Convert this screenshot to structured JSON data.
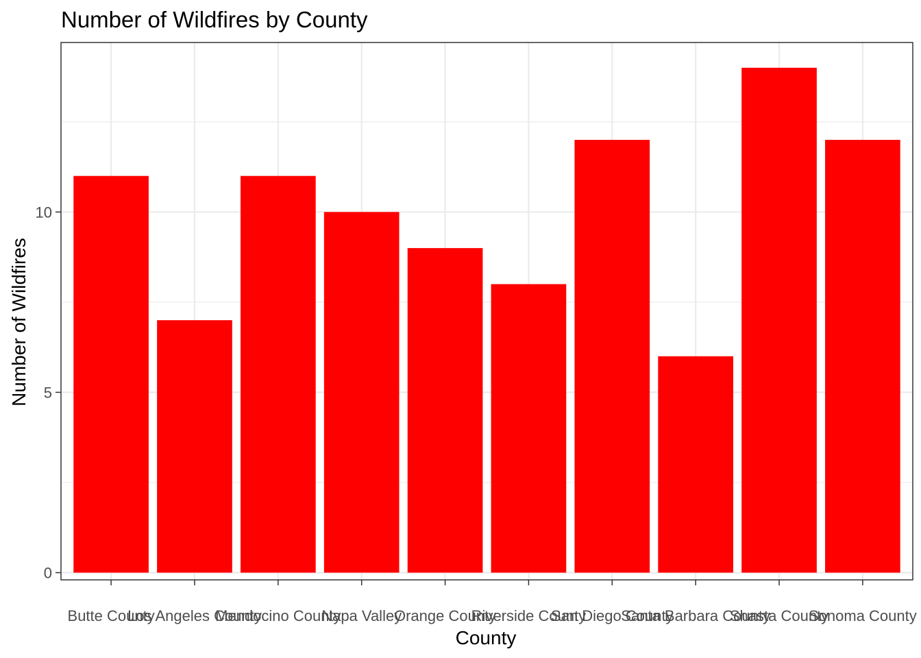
{
  "chart_data": {
    "type": "bar",
    "title": "Number of Wildfires by County",
    "xlabel": "County",
    "ylabel": "Number of Wildfires",
    "categories": [
      "Butte County",
      "Los Angeles County",
      "Mendocino County",
      "Napa Valley",
      "Orange County",
      "Riverside County",
      "San Diego County",
      "Santa Barbara County",
      "Shasta County",
      "Sonoma County"
    ],
    "values": [
      11,
      7,
      11,
      10,
      9,
      8,
      12,
      6,
      14,
      12
    ],
    "ylim": [
      -0.2,
      14.7
    ],
    "yticks": [
      0,
      5,
      10
    ],
    "yticks_labels": [
      "0",
      "5",
      "10"
    ],
    "grid": true,
    "bar_color": "#ff0000",
    "grid_color": "#ebebeb",
    "panel_border_color": "#333333",
    "tick_label_color": "#4d4d4d"
  }
}
